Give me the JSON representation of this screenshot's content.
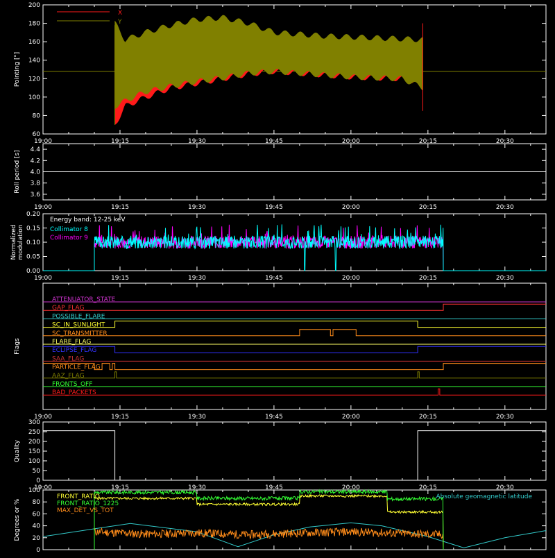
{
  "x_axis": {
    "start": "19:00",
    "end": "20:38",
    "tick_labels": [
      "19:00",
      "19:15",
      "19:30",
      "19:45",
      "20:00",
      "20:15",
      "20:30"
    ]
  },
  "colors": {
    "background": "#000000",
    "axis": "#ffffff",
    "x": "#ff1a1a",
    "y": "#808000",
    "coll8": "#00ffff",
    "coll9": "#ff00ff",
    "front_ratio": "#ffff33",
    "front_ratio_1225": "#33ff33",
    "max_det": "#ff8c1a",
    "latitude": "#33cccc"
  },
  "chart_data": [
    {
      "id": "pointing",
      "type": "line",
      "ylabel": "Pointing [\"]",
      "ylim": [
        60,
        200
      ],
      "yticks": [
        60,
        80,
        100,
        120,
        140,
        160,
        180,
        200
      ],
      "legend": [
        {
          "name": "X",
          "color": "#ff1a1a"
        },
        {
          "name": "Y",
          "color": "#808000"
        }
      ],
      "data_start": "19:14",
      "data_end": "20:14",
      "baseline": 128,
      "x": [
        "19:14",
        "19:16",
        "19:20",
        "19:25",
        "19:30",
        "19:35",
        "19:40",
        "19:45",
        "19:50",
        "19:55",
        "20:00",
        "20:05",
        "20:10",
        "20:14"
      ],
      "series": [
        {
          "name": "X",
          "color": "#ff1a1a",
          "upper": [
            172,
            160,
            164,
            168,
            170,
            168,
            160,
            154,
            152,
            152,
            152,
            152,
            154,
            160
          ],
          "lower": [
            70,
            90,
            100,
            110,
            115,
            120,
            125,
            128,
            126,
            124,
            122,
            121,
            120,
            115
          ]
        },
        {
          "name": "Y",
          "color": "#808000",
          "upper": [
            180,
            162,
            170,
            178,
            184,
            186,
            180,
            170,
            168,
            166,
            165,
            164,
            163,
            162
          ],
          "lower": [
            90,
            96,
            106,
            112,
            117,
            121,
            126,
            128,
            126,
            124,
            122,
            121,
            120,
            110
          ]
        }
      ]
    },
    {
      "id": "roll",
      "type": "line",
      "ylabel": "Roll period [s]",
      "ylim": [
        3.5,
        4.5
      ],
      "yticks": [
        3.6,
        3.8,
        4.0,
        4.2,
        4.4
      ],
      "series": [
        {
          "name": "roll period",
          "values": [
            4.0,
            4.0
          ]
        }
      ],
      "x": [
        "19:00",
        "20:38"
      ]
    },
    {
      "id": "modulation",
      "type": "line",
      "ylabel": "Normalized modulation",
      "ylim": [
        0,
        0.2
      ],
      "yticks": [
        "0.00",
        "0.05",
        "0.10",
        "0.15",
        "0.20"
      ],
      "annotation": "Energy band: 12-25 keV",
      "legend": [
        {
          "name": "Collimator 8",
          "color": "#00ffff"
        },
        {
          "name": "Collimator 9",
          "color": "#ff00ff"
        }
      ],
      "data_start": "19:10",
      "data_end": "20:18",
      "mean": 0.1,
      "dropouts": [
        "19:51",
        "19:57"
      ]
    },
    {
      "id": "flags",
      "type": "line",
      "ylabel": "Flags",
      "rows": [
        {
          "name": "ATTENUATOR_STATE",
          "color": "#cc33cc",
          "level": 0,
          "steps": []
        },
        {
          "name": "GAP_FLAG",
          "color": "#ff3333",
          "level": 0,
          "steps": [
            [
              "20:18",
              1
            ]
          ]
        },
        {
          "name": "POSSIBLE_FLARE",
          "color": "#33cccc",
          "level": 0,
          "steps": []
        },
        {
          "name": "SC_IN_SUNLIGHT",
          "color": "#ffff33",
          "level": 0,
          "steps": [
            [
              "19:14",
              1
            ],
            [
              "20:13",
              0
            ]
          ]
        },
        {
          "name": "SC_TRANSMITTER",
          "color": "#ff8c1a",
          "level": 0,
          "steps": [
            [
              "19:50",
              1
            ],
            [
              "19:56",
              0
            ],
            [
              "19:56.5",
              1
            ],
            [
              "20:01",
              0
            ]
          ]
        },
        {
          "name": "FLARE_FLAG",
          "color": "#ffff66",
          "level": 0,
          "steps": []
        },
        {
          "name": "ECLIPSE_FLAG",
          "color": "#3333ff",
          "level": 1,
          "steps": [
            [
              "19:14",
              0
            ],
            [
              "20:13",
              1
            ]
          ]
        },
        {
          "name": "SAA_FLAG",
          "color": "#cc3333",
          "level": 0,
          "steps": []
        },
        {
          "name": "PARTICLE_FLAG",
          "color": "#ff8c1a",
          "level": 1,
          "steps": [
            [
              "19:10",
              0
            ],
            [
              "19:11.5",
              1
            ],
            [
              "19:13",
              0
            ],
            [
              "19:13.5",
              1
            ],
            [
              "19:14",
              0
            ],
            [
              "20:18",
              1
            ]
          ]
        },
        {
          "name": "AAZ_FLAG",
          "color": "#808000",
          "level": 0,
          "steps": [
            [
              "19:14",
              1
            ],
            [
              "19:14.3",
              0
            ],
            [
              "20:13",
              1
            ],
            [
              "20:13.3",
              0
            ]
          ]
        },
        {
          "name": "FRONTS_OFF",
          "color": "#33ff33",
          "level": 0,
          "steps": []
        },
        {
          "name": "BAD_PACKETS",
          "color": "#ff1a1a",
          "level": 0,
          "steps": [
            [
              "20:17",
              1
            ],
            [
              "20:17.3",
              0
            ]
          ]
        }
      ]
    },
    {
      "id": "quality",
      "type": "line",
      "ylabel": "Quality",
      "ylim": [
        0,
        300
      ],
      "yticks": [
        0,
        50,
        100,
        150,
        200,
        250,
        300
      ],
      "x": [
        "19:00",
        "19:14",
        "19:14",
        "20:13",
        "20:13",
        "20:38"
      ],
      "values": [
        255,
        255,
        0,
        0,
        255,
        255
      ]
    },
    {
      "id": "ratios",
      "type": "line",
      "ylabel": "Degrees or %",
      "ylim": [
        0,
        100
      ],
      "yticks": [
        0,
        20,
        40,
        60,
        80,
        100
      ],
      "legend": [
        {
          "name": "FRONT_RATIO",
          "color": "#ffff33"
        },
        {
          "name": "FRONT_RATIO_1225",
          "color": "#33ff33"
        },
        {
          "name": "MAX_DET_VS_TOT",
          "color": "#ff8c1a"
        }
      ],
      "legend_right": {
        "name": "Absolute geomagnetic latitude",
        "color": "#33cccc"
      },
      "data_start": "19:10",
      "data_end": "20:18",
      "front_ratio": {
        "x": [
          "19:10",
          "19:30",
          "19:30",
          "19:50",
          "19:50",
          "20:07",
          "20:07",
          "20:18"
        ],
        "y": [
          86,
          86,
          76,
          76,
          90,
          90,
          63,
          63
        ]
      },
      "front_ratio_1225": {
        "x": [
          "19:10",
          "19:30",
          "19:30",
          "19:50",
          "19:50",
          "20:07",
          "20:07",
          "20:18"
        ],
        "y": [
          96,
          96,
          86,
          86,
          97,
          97,
          85,
          85
        ]
      },
      "max_det_vs_tot": {
        "x": [
          "19:10",
          "19:20",
          "19:30",
          "19:40",
          "19:50",
          "20:00",
          "20:10",
          "20:18"
        ],
        "y": [
          30,
          26,
          28,
          25,
          28,
          30,
          27,
          25
        ]
      },
      "latitude": {
        "x": [
          "19:00",
          "19:10",
          "19:17",
          "19:30",
          "19:38",
          "19:45",
          "19:52",
          "20:00",
          "20:06",
          "20:15",
          "20:22",
          "20:30",
          "20:38"
        ],
        "y": [
          22,
          35,
          44,
          30,
          5,
          25,
          38,
          45,
          40,
          22,
          3,
          20,
          32
        ]
      }
    }
  ]
}
